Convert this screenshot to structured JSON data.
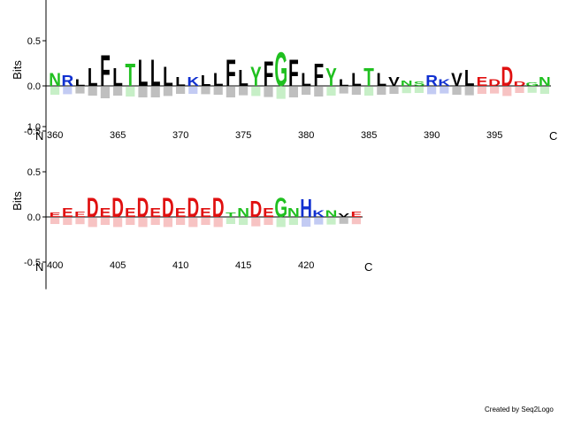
{
  "footer": {
    "credit": "Created by Seq2Logo"
  },
  "colors": {
    "hydrophobic": "#000000",
    "polar": "#20c020",
    "basic": "#1030d0",
    "acidic": "#e01010",
    "axis": "#000000"
  },
  "chart_data": [
    {
      "type": "sequence-logo",
      "ylabel": "Bits",
      "ylim": [
        -0.8,
        1.3
      ],
      "yticks": [
        -0.5,
        0.0,
        0.5,
        1.0
      ],
      "n_terminal_label": "N",
      "c_terminal_label": "C",
      "positions": [
        360,
        361,
        362,
        363,
        364,
        365,
        366,
        367,
        368,
        369,
        370,
        371,
        372,
        373,
        374,
        375,
        376,
        377,
        378,
        379,
        380,
        381,
        382,
        383,
        384,
        385,
        386,
        387,
        388,
        389,
        390,
        391,
        392,
        393,
        394,
        395,
        396,
        397,
        398,
        399
      ],
      "xtick_labels": [
        360,
        365,
        370,
        375,
        380,
        385,
        390,
        395
      ],
      "top_residues": [
        {
          "pos": 360,
          "aa": "N",
          "bits": 0.15
        },
        {
          "pos": 361,
          "aa": "R",
          "bits": 0.12
        },
        {
          "pos": 362,
          "aa": "L",
          "bits": 0.08
        },
        {
          "pos": 363,
          "aa": "L",
          "bits": 0.2
        },
        {
          "pos": 364,
          "aa": "F",
          "bits": 0.35
        },
        {
          "pos": 365,
          "aa": "L",
          "bits": 0.2
        },
        {
          "pos": 366,
          "aa": "T",
          "bits": 0.25
        },
        {
          "pos": 367,
          "aa": "L",
          "bits": 0.3
        },
        {
          "pos": 368,
          "aa": "L",
          "bits": 0.3
        },
        {
          "pos": 369,
          "aa": "L",
          "bits": 0.22
        },
        {
          "pos": 370,
          "aa": "L",
          "bits": 0.1
        },
        {
          "pos": 371,
          "aa": "K",
          "bits": 0.1
        },
        {
          "pos": 372,
          "aa": "L",
          "bits": 0.12
        },
        {
          "pos": 373,
          "aa": "L",
          "bits": 0.15
        },
        {
          "pos": 374,
          "aa": "F",
          "bits": 0.3
        },
        {
          "pos": 375,
          "aa": "L",
          "bits": 0.18
        },
        {
          "pos": 376,
          "aa": "Y",
          "bits": 0.22
        },
        {
          "pos": 377,
          "aa": "F",
          "bits": 0.28
        },
        {
          "pos": 378,
          "aa": "G",
          "bits": 0.38
        },
        {
          "pos": 379,
          "aa": "F",
          "bits": 0.3
        },
        {
          "pos": 380,
          "aa": "L",
          "bits": 0.15
        },
        {
          "pos": 381,
          "aa": "F",
          "bits": 0.25
        },
        {
          "pos": 382,
          "aa": "Y",
          "bits": 0.2
        },
        {
          "pos": 383,
          "aa": "L",
          "bits": 0.08
        },
        {
          "pos": 384,
          "aa": "L",
          "bits": 0.15
        },
        {
          "pos": 385,
          "aa": "T",
          "bits": 0.2
        },
        {
          "pos": 386,
          "aa": "L",
          "bits": 0.15
        },
        {
          "pos": 387,
          "aa": "V",
          "bits": 0.1
        },
        {
          "pos": 388,
          "aa": "N",
          "bits": 0.06
        },
        {
          "pos": 389,
          "aa": "S",
          "bits": 0.05
        },
        {
          "pos": 390,
          "aa": "R",
          "bits": 0.12
        },
        {
          "pos": 391,
          "aa": "K",
          "bits": 0.08
        },
        {
          "pos": 392,
          "aa": "V",
          "bits": 0.15
        },
        {
          "pos": 393,
          "aa": "L",
          "bits": 0.18
        },
        {
          "pos": 394,
          "aa": "E",
          "bits": 0.1
        },
        {
          "pos": 395,
          "aa": "D",
          "bits": 0.08
        },
        {
          "pos": 396,
          "aa": "D",
          "bits": 0.22
        },
        {
          "pos": 397,
          "aa": "D",
          "bits": 0.05
        },
        {
          "pos": 398,
          "aa": "G",
          "bits": 0.04
        },
        {
          "pos": 399,
          "aa": "N",
          "bits": 0.1
        }
      ]
    },
    {
      "type": "sequence-logo",
      "ylabel": "Bits",
      "ylim": [
        -0.8,
        1.3
      ],
      "yticks": [
        -0.5,
        0.0,
        0.5,
        1.0
      ],
      "n_terminal_label": "N",
      "c_terminal_label": "C",
      "positions": [
        400,
        401,
        402,
        403,
        404,
        405,
        406,
        407,
        408,
        409,
        410,
        411,
        412,
        413,
        414,
        415,
        416,
        417,
        418,
        419,
        420,
        421,
        422,
        423,
        424
      ],
      "xtick_labels": [
        400,
        405,
        410,
        415,
        420
      ],
      "top_residues": [
        {
          "pos": 400,
          "aa": "E",
          "bits": 0.05
        },
        {
          "pos": 401,
          "aa": "E",
          "bits": 0.1
        },
        {
          "pos": 402,
          "aa": "E",
          "bits": 0.06
        },
        {
          "pos": 403,
          "aa": "D",
          "bits": 0.22
        },
        {
          "pos": 404,
          "aa": "E",
          "bits": 0.1
        },
        {
          "pos": 405,
          "aa": "D",
          "bits": 0.22
        },
        {
          "pos": 406,
          "aa": "E",
          "bits": 0.1
        },
        {
          "pos": 407,
          "aa": "D",
          "bits": 0.22
        },
        {
          "pos": 408,
          "aa": "E",
          "bits": 0.1
        },
        {
          "pos": 409,
          "aa": "D",
          "bits": 0.22
        },
        {
          "pos": 410,
          "aa": "E",
          "bits": 0.1
        },
        {
          "pos": 411,
          "aa": "D",
          "bits": 0.22
        },
        {
          "pos": 412,
          "aa": "E",
          "bits": 0.1
        },
        {
          "pos": 413,
          "aa": "D",
          "bits": 0.22
        },
        {
          "pos": 414,
          "aa": "T",
          "bits": 0.05
        },
        {
          "pos": 415,
          "aa": "N",
          "bits": 0.1
        },
        {
          "pos": 416,
          "aa": "D",
          "bits": 0.18
        },
        {
          "pos": 417,
          "aa": "E",
          "bits": 0.1
        },
        {
          "pos": 418,
          "aa": "G",
          "bits": 0.22
        },
        {
          "pos": 419,
          "aa": "N",
          "bits": 0.1
        },
        {
          "pos": 420,
          "aa": "H",
          "bits": 0.2
        },
        {
          "pos": 421,
          "aa": "K",
          "bits": 0.08
        },
        {
          "pos": 422,
          "aa": "N",
          "bits": 0.08
        },
        {
          "pos": 423,
          "aa": "V",
          "bits": 0.04
        },
        {
          "pos": 424,
          "aa": "E",
          "bits": 0.06
        }
      ]
    }
  ]
}
